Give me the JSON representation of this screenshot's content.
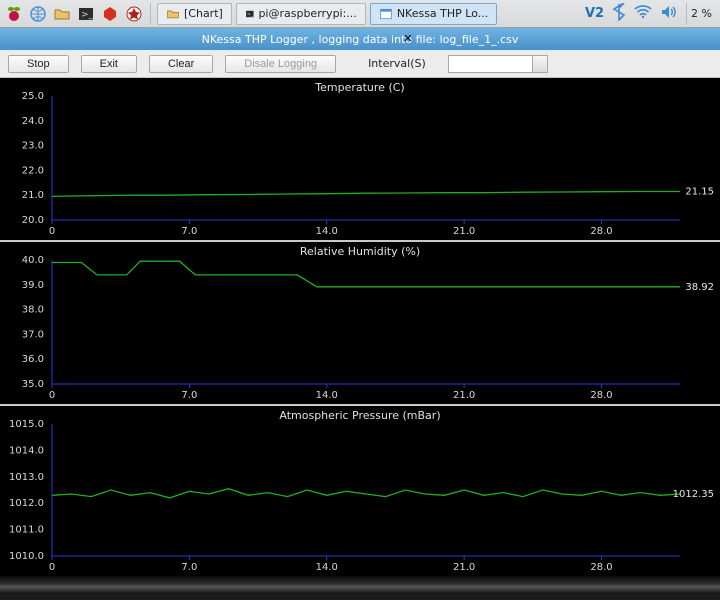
{
  "taskbar": {
    "tasks": [
      {
        "label": "[Chart]"
      },
      {
        "label": "pi@raspberrypi:..."
      },
      {
        "label": "NKessa THP Lo..."
      }
    ],
    "cpu_pct": "2 %"
  },
  "window": {
    "title": "NKessa THP Logger , logging data into file: log_file_1_.csv"
  },
  "toolbar": {
    "stop": "Stop",
    "exit": "Exit",
    "clear": "Clear",
    "disable": "Disale Logging",
    "interval_label": "Interval(S)"
  },
  "charts": {
    "plot_bg": "#000000",
    "axis_color": "#2838d8",
    "series_color": "#1fb01f",
    "text_color": "#d8d8d8",
    "x": {
      "min": 0,
      "max": 32,
      "ticks": [
        0,
        7.0,
        14.0,
        21.0,
        28.0
      ]
    },
    "panels": [
      {
        "title": "Temperature (C)",
        "ymin": 20.0,
        "ymax": 25.0,
        "yticks": [
          20.0,
          21.0,
          22.0,
          23.0,
          24.0,
          25.0
        ],
        "current": "21.15",
        "height": 162,
        "points": [
          [
            0,
            20.95
          ],
          [
            2,
            20.98
          ],
          [
            4,
            21.0
          ],
          [
            6,
            21.0
          ],
          [
            8,
            21.02
          ],
          [
            10,
            21.03
          ],
          [
            12,
            21.05
          ],
          [
            14,
            21.06
          ],
          [
            16,
            21.08
          ],
          [
            18,
            21.09
          ],
          [
            20,
            21.1
          ],
          [
            22,
            21.1
          ],
          [
            24,
            21.12
          ],
          [
            26,
            21.13
          ],
          [
            28,
            21.14
          ],
          [
            30,
            21.15
          ],
          [
            32,
            21.15
          ]
        ]
      },
      {
        "title": "Relative Humidity (%)",
        "ymin": 35.0,
        "ymax": 40.0,
        "yticks": [
          35.0,
          36.0,
          37.0,
          38.0,
          39.0,
          40.0
        ],
        "current": "38.92",
        "height": 162,
        "points": [
          [
            0,
            39.9
          ],
          [
            1.5,
            39.9
          ],
          [
            2.3,
            39.4
          ],
          [
            3.8,
            39.4
          ],
          [
            4.5,
            39.95
          ],
          [
            6.5,
            39.95
          ],
          [
            7.3,
            39.4
          ],
          [
            12.5,
            39.4
          ],
          [
            13.5,
            38.92
          ],
          [
            32,
            38.92
          ]
        ]
      },
      {
        "title": "Atmospheric Pressure (mBar)",
        "ymin": 1010.0,
        "ymax": 1015.0,
        "yticks": [
          1010.0,
          1011.0,
          1012.0,
          1013.0,
          1014.0,
          1015.0
        ],
        "current": "1012.35",
        "height": 170,
        "points": [
          [
            0,
            1012.3
          ],
          [
            1,
            1012.35
          ],
          [
            2,
            1012.25
          ],
          [
            3,
            1012.5
          ],
          [
            4,
            1012.3
          ],
          [
            5,
            1012.4
          ],
          [
            6,
            1012.2
          ],
          [
            7,
            1012.45
          ],
          [
            8,
            1012.35
          ],
          [
            9,
            1012.55
          ],
          [
            10,
            1012.3
          ],
          [
            11,
            1012.4
          ],
          [
            12,
            1012.25
          ],
          [
            13,
            1012.5
          ],
          [
            14,
            1012.3
          ],
          [
            15,
            1012.45
          ],
          [
            16,
            1012.35
          ],
          [
            17,
            1012.25
          ],
          [
            18,
            1012.5
          ],
          [
            19,
            1012.35
          ],
          [
            20,
            1012.3
          ],
          [
            21,
            1012.5
          ],
          [
            22,
            1012.3
          ],
          [
            23,
            1012.4
          ],
          [
            24,
            1012.25
          ],
          [
            25,
            1012.5
          ],
          [
            26,
            1012.35
          ],
          [
            27,
            1012.3
          ],
          [
            28,
            1012.45
          ],
          [
            29,
            1012.3
          ],
          [
            30,
            1012.4
          ],
          [
            31,
            1012.3
          ],
          [
            32,
            1012.35
          ]
        ]
      }
    ]
  }
}
